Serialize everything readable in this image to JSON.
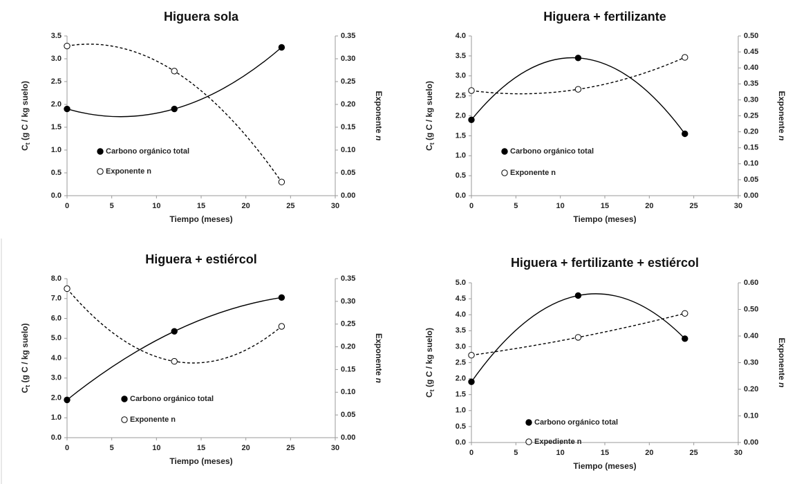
{
  "chart_data": [
    {
      "type": "line",
      "title": "Higuera sola",
      "xlabel": "Tiempo (meses)",
      "ylabel": [
        "C",
        "t",
        " (g C / kg suelo)"
      ],
      "y2label": [
        "Exponente ",
        "n"
      ],
      "x": [
        0,
        12,
        24
      ],
      "xlim": [
        0,
        30
      ],
      "xticks": [
        0,
        5,
        10,
        15,
        20,
        25,
        30
      ],
      "ylim": [
        0,
        3.5
      ],
      "yticks": [
        {
          "value": 0,
          "label": "0.0"
        },
        0.5,
        {
          "value": 1,
          "label": "1.0"
        },
        1.5,
        {
          "value": 2,
          "label": "2.0"
        },
        2.5,
        {
          "value": 3,
          "label": "3.0"
        },
        3.5
      ],
      "y2lim": [
        0,
        0.35
      ],
      "y2ticks": [
        {
          "value": 0,
          "label": "0.00"
        },
        0.05,
        {
          "value": 0.1,
          "label": "0.10"
        },
        0.15,
        {
          "value": 0.2,
          "label": "0.20"
        },
        0.25,
        {
          "value": 0.3,
          "label": "0.30"
        },
        0.35
      ],
      "series": [
        {
          "name": "Carbono orgánico total",
          "color": "#000000",
          "marker": "filled",
          "linestyle": "solid",
          "values": [
            1.9,
            1.9,
            3.25
          ]
        },
        {
          "name": "Exponente n",
          "color": "#000000",
          "marker": "open",
          "linestyle": "dashed",
          "axis": "y2",
          "values": [
            0.328,
            0.273,
            0.03
          ]
        }
      ]
    },
    {
      "type": "line",
      "title": "Higuera + fertilizante",
      "xlabel": "Tiempo (meses)",
      "ylabel": [
        "C",
        "t",
        " (g C / kg suelo)"
      ],
      "y2label": [
        "Exponente ",
        "n"
      ],
      "x": [
        0,
        12,
        24
      ],
      "xlim": [
        0,
        30
      ],
      "xticks": [
        0,
        5,
        10,
        15,
        20,
        25,
        30
      ],
      "ylim": [
        0,
        4
      ],
      "yticks": [
        {
          "value": 0,
          "label": "0.0"
        },
        0.5,
        {
          "value": 1,
          "label": "1.0"
        },
        1.5,
        {
          "value": 2,
          "label": "2.0"
        },
        2.5,
        {
          "value": 3,
          "label": "3.0"
        },
        3.5,
        {
          "value": 4,
          "label": "4.0"
        }
      ],
      "y2lim": [
        0,
        0.5
      ],
      "y2ticks": [
        {
          "value": 0,
          "label": "0.00"
        },
        0.05,
        {
          "value": 0.1,
          "label": "0.10"
        },
        0.15,
        {
          "value": 0.2,
          "label": "0.20"
        },
        0.25,
        {
          "value": 0.3,
          "label": "0.30"
        },
        0.35,
        {
          "value": 0.4,
          "label": "0.40"
        },
        0.45,
        {
          "value": 0.5,
          "label": "0.50"
        }
      ],
      "series": [
        {
          "name": "Carbono orgánico total",
          "color": "#000000",
          "marker": "filled",
          "linestyle": "solid",
          "values": [
            1.9,
            3.45,
            1.55
          ]
        },
        {
          "name": "Exponente n",
          "color": "#000000",
          "marker": "open",
          "linestyle": "dashed",
          "axis": "y2",
          "values": [
            0.329,
            0.333,
            0.433
          ]
        }
      ]
    },
    {
      "type": "line",
      "title": "Higuera + estiércol",
      "xlabel": "Tiempo (meses)",
      "ylabel": [
        "C",
        "t",
        " (g C / kg suelo)"
      ],
      "y2label": [
        "Exponente ",
        "n"
      ],
      "x": [
        0,
        12,
        24
      ],
      "xlim": [
        0,
        30
      ],
      "xticks": [
        0,
        5,
        10,
        15,
        20,
        25,
        30
      ],
      "ylim": [
        0,
        8
      ],
      "yticks": [
        {
          "value": 0,
          "label": "0.0"
        },
        {
          "value": 1,
          "label": "1.0"
        },
        {
          "value": 2,
          "label": "2.0"
        },
        {
          "value": 3,
          "label": "3.0"
        },
        {
          "value": 4,
          "label": "4.0"
        },
        {
          "value": 5,
          "label": "5.0"
        },
        {
          "value": 6,
          "label": "6.0"
        },
        {
          "value": 7,
          "label": "7.0"
        },
        {
          "value": 8,
          "label": "8.0"
        }
      ],
      "y2lim": [
        0,
        0.35
      ],
      "y2ticks": [
        {
          "value": 0,
          "label": "0.00"
        },
        0.05,
        {
          "value": 0.1,
          "label": "0.10"
        },
        0.15,
        {
          "value": 0.2,
          "label": "0.20"
        },
        0.25,
        {
          "value": 0.3,
          "label": "0.30"
        },
        0.35
      ],
      "series": [
        {
          "name": "Carbono orgánico total",
          "color": "#000000",
          "marker": "filled",
          "linestyle": "solid",
          "values": [
            1.9,
            5.35,
            7.05
          ]
        },
        {
          "name": "Exponente n",
          "color": "#000000",
          "marker": "open",
          "linestyle": "dashed",
          "axis": "y2",
          "values": [
            0.328,
            0.168,
            0.245
          ]
        }
      ]
    },
    {
      "type": "line",
      "title": "Higuera + fertilizante + estiércol",
      "xlabel": "Tiempo (meses)",
      "ylabel": [
        "C",
        "t",
        " (g C / kg suelo)"
      ],
      "y2label": [
        "Exponente ",
        "n"
      ],
      "x": [
        0,
        12,
        24
      ],
      "xlim": [
        0,
        30
      ],
      "xticks": [
        0,
        5,
        10,
        15,
        20,
        25,
        30
      ],
      "ylim": [
        0,
        5
      ],
      "yticks": [
        {
          "value": 0,
          "label": "0.0"
        },
        0.5,
        {
          "value": 1,
          "label": "1.0"
        },
        1.5,
        {
          "value": 2,
          "label": "2.0"
        },
        2.5,
        {
          "value": 3,
          "label": "3.0"
        },
        3.5,
        {
          "value": 4,
          "label": "4.0"
        },
        4.5,
        {
          "value": 5,
          "label": "5.0"
        }
      ],
      "y2lim": [
        0,
        0.6
      ],
      "y2ticks": [
        {
          "value": 0,
          "label": "0.00"
        },
        {
          "value": 0.1,
          "label": "0.10"
        },
        {
          "value": 0.2,
          "label": "0.20"
        },
        {
          "value": 0.3,
          "label": "0.30"
        },
        {
          "value": 0.4,
          "label": "0.40"
        },
        {
          "value": 0.5,
          "label": "0.50"
        },
        {
          "value": 0.6,
          "label": "0.60"
        }
      ],
      "series": [
        {
          "name": "Carbono orgánico total",
          "color": "#000000",
          "marker": "filled",
          "linestyle": "solid",
          "values": [
            1.9,
            4.6,
            3.25
          ]
        },
        {
          "name": "Expediente n",
          "color": "#000000",
          "marker": "open",
          "linestyle": "dashed",
          "axis": "y2",
          "values": [
            0.328,
            0.395,
            0.485
          ]
        }
      ]
    }
  ]
}
